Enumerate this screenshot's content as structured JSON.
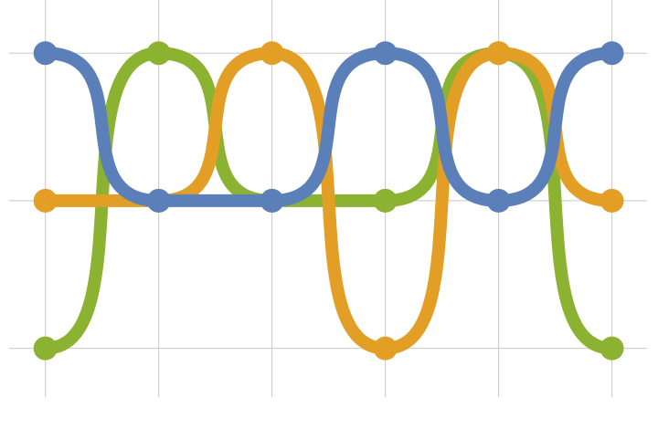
{
  "chart_data": {
    "type": "line",
    "x": [
      0,
      1,
      2,
      3,
      4,
      5
    ],
    "series": [
      {
        "color": "#8cb232",
        "values": [
          -1,
          1,
          0,
          0,
          1,
          -1
        ]
      },
      {
        "color": "#e39e26",
        "values": [
          0,
          0,
          1,
          -1,
          1,
          0
        ]
      },
      {
        "color": "#5b80b9",
        "values": [
          1,
          0,
          0,
          1,
          0,
          1
        ]
      }
    ],
    "xlim": [
      -0.32,
      5.31
    ],
    "xticks": [
      0,
      1,
      2,
      3,
      4,
      5
    ],
    "ylim": [
      -1.33,
      1.36
    ],
    "yticks": [
      -1,
      0,
      1
    ],
    "grid": true,
    "smooth": true
  }
}
